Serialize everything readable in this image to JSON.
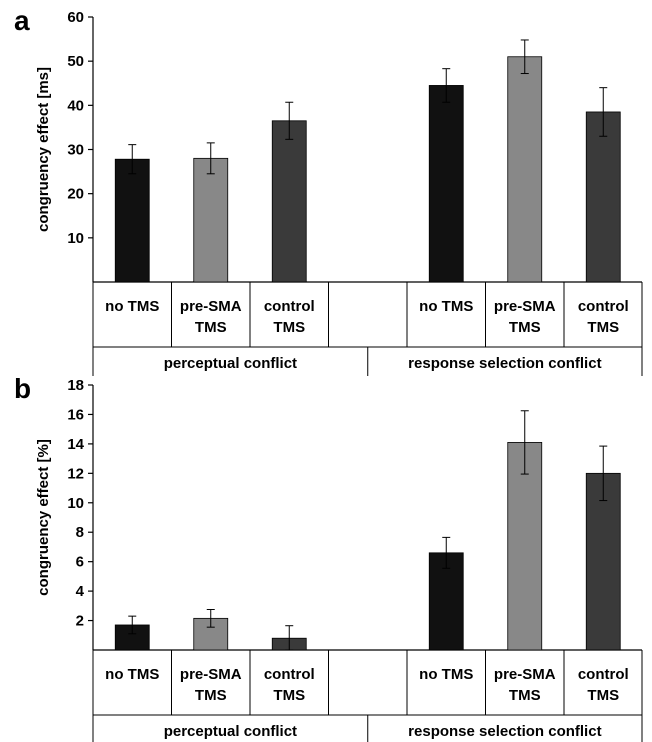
{
  "chart_data": [
    {
      "type": "bar",
      "panel_label": "a",
      "ylabel": "congruency effect [ms]",
      "ylim": [
        0,
        60
      ],
      "yticks": [
        "10",
        "20",
        "30",
        "40",
        "50",
        "60"
      ],
      "groups": [
        {
          "label": "perceptual conflict",
          "categories": [
            "no TMS",
            "pre-SMA TMS",
            "control TMS"
          ]
        },
        {
          "label": "response selection conflict",
          "categories": [
            "no TMS",
            "pre-SMA TMS",
            "control TMS"
          ]
        }
      ],
      "category_lines": [
        [
          "no TMS"
        ],
        [
          "pre-SMA",
          "TMS"
        ],
        [
          "control",
          "TMS"
        ]
      ],
      "values": [
        27.8,
        28.0,
        36.5,
        44.5,
        51.0,
        38.5
      ],
      "errors": [
        3.3,
        3.5,
        4.2,
        3.8,
        3.8,
        5.5
      ],
      "colors": [
        "#111111",
        "#888888",
        "#3a3a3a",
        "#111111",
        "#888888",
        "#3a3a3a"
      ]
    },
    {
      "type": "bar",
      "panel_label": "b",
      "ylabel": "congruency effect [%]",
      "ylim": [
        0,
        18
      ],
      "yticks": [
        "2",
        "4",
        "6",
        "8",
        "10",
        "12",
        "14",
        "16",
        "18"
      ],
      "groups": [
        {
          "label": "perceptual conflict",
          "categories": [
            "no TMS",
            "pre-SMA TMS",
            "control TMS"
          ]
        },
        {
          "label": "response selection conflict",
          "categories": [
            "no TMS",
            "pre-SMA TMS",
            "control TMS"
          ]
        }
      ],
      "category_lines": [
        [
          "no TMS"
        ],
        [
          "pre-SMA",
          "TMS"
        ],
        [
          "control",
          "TMS"
        ]
      ],
      "values": [
        1.7,
        2.15,
        0.8,
        6.6,
        14.1,
        12.0
      ],
      "errors": [
        0.6,
        0.6,
        0.85,
        1.05,
        2.15,
        1.85
      ],
      "colors": [
        "#111111",
        "#888888",
        "#3a3a3a",
        "#111111",
        "#888888",
        "#3a3a3a"
      ]
    }
  ]
}
